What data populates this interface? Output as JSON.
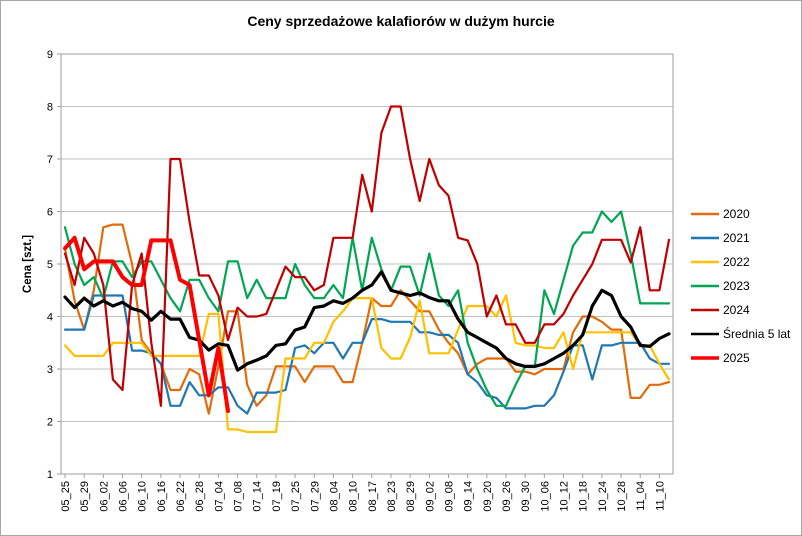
{
  "chart": {
    "title": "Ceny sprzedażowe kalafiorów w dużym hurcie",
    "y_axis_title": "Cena [szt.]",
    "colors": {
      "grid": "#c2c2c2",
      "axis": "#9e9e9e",
      "background": "#ffffff"
    },
    "chart_data": {
      "type": "line",
      "title": "Ceny sprzedażowe kalafiorów w dużym hurcie",
      "xlabel": "",
      "ylabel": "Cena [szt.]",
      "ylim": [
        1,
        9
      ],
      "y_ticks": [
        1,
        2,
        3,
        4,
        5,
        6,
        7,
        8,
        9
      ],
      "grid": "horizontal",
      "legend_position": "right",
      "categories": [
        "05_25",
        "05_29",
        "06_02",
        "06_06",
        "06_10",
        "06_16",
        "06_22",
        "06_28",
        "07_04",
        "07_08",
        "07_14",
        "07_19",
        "07_25",
        "07_29",
        "08_04",
        "08_10",
        "08_17",
        "08_23",
        "08_29",
        "09_02",
        "09_08",
        "09_14",
        "09_20",
        "09_26",
        "09_30",
        "10_06",
        "10_12",
        "10_18",
        "10_24",
        "10_28",
        "11_04",
        "11_10"
      ],
      "points_per_category": 2,
      "series": [
        {
          "name": "2020",
          "color": "#e36c0a",
          "width": 2.2,
          "values": [
            5.3,
            4.3,
            3.75,
            4.5,
            5.7,
            5.75,
            5.75,
            5.0,
            3.55,
            3.3,
            3.1,
            2.6,
            2.6,
            3.0,
            2.9,
            2.15,
            3.05,
            4.1,
            4.1,
            2.7,
            2.3,
            2.5,
            3.05,
            3.05,
            3.05,
            2.75,
            3.05,
            3.05,
            3.05,
            2.75,
            2.75,
            3.5,
            4.35,
            4.2,
            4.2,
            4.5,
            4.3,
            4.1,
            4.1,
            3.75,
            3.5,
            3.3,
            2.9,
            3.1,
            3.2,
            3.2,
            3.2,
            2.95,
            2.95,
            2.9,
            3.0,
            3.0,
            3.0,
            3.7,
            4.0,
            4.0,
            3.9,
            3.75,
            3.75,
            2.45,
            2.45,
            2.7,
            2.7,
            2.75
          ]
        },
        {
          "name": "2021",
          "color": "#1f77b4",
          "width": 2.2,
          "values": [
            3.75,
            3.75,
            3.75,
            4.4,
            4.4,
            4.4,
            4.4,
            3.35,
            3.35,
            3.3,
            3.1,
            2.3,
            2.3,
            2.75,
            2.5,
            2.5,
            2.65,
            2.65,
            2.3,
            2.15,
            2.55,
            2.55,
            2.55,
            2.6,
            3.4,
            3.45,
            3.3,
            3.5,
            3.5,
            3.2,
            3.5,
            3.5,
            3.95,
            3.95,
            3.9,
            3.9,
            3.9,
            3.7,
            3.7,
            3.65,
            3.65,
            3.5,
            2.9,
            2.75,
            2.5,
            2.45,
            2.25,
            2.25,
            2.25,
            2.3,
            2.3,
            2.5,
            2.95,
            3.45,
            3.45,
            2.8,
            3.45,
            3.45,
            3.5,
            3.5,
            3.5,
            3.2,
            3.1,
            3.1
          ]
        },
        {
          "name": "2022",
          "color": "#ffc000",
          "width": 2.2,
          "values": [
            3.45,
            3.25,
            3.25,
            3.25,
            3.25,
            3.5,
            3.5,
            3.5,
            3.5,
            3.25,
            3.25,
            3.25,
            3.25,
            3.25,
            3.25,
            4.05,
            4.05,
            1.85,
            1.85,
            1.8,
            1.8,
            1.8,
            1.8,
            3.2,
            3.2,
            3.2,
            3.5,
            3.5,
            3.9,
            4.1,
            4.35,
            4.35,
            4.35,
            3.4,
            3.2,
            3.2,
            3.6,
            4.3,
            3.3,
            3.3,
            3.3,
            3.75,
            4.2,
            4.2,
            4.2,
            4.0,
            4.4,
            3.5,
            3.45,
            3.45,
            3.4,
            3.4,
            3.7,
            3.0,
            3.7,
            3.7,
            3.7,
            3.7,
            3.7,
            3.7,
            3.45,
            3.45,
            3.1,
            2.8
          ]
        },
        {
          "name": "2023",
          "color": "#00a651",
          "width": 2.2,
          "values": [
            5.7,
            5.0,
            4.6,
            4.75,
            4.35,
            5.05,
            5.05,
            4.75,
            5.05,
            5.05,
            4.7,
            4.35,
            4.1,
            4.7,
            4.7,
            4.35,
            4.1,
            5.05,
            5.05,
            4.35,
            4.7,
            4.35,
            4.35,
            4.35,
            5.0,
            4.6,
            4.35,
            4.35,
            4.6,
            4.35,
            5.5,
            4.5,
            5.5,
            4.9,
            4.5,
            4.95,
            4.95,
            4.4,
            5.2,
            4.4,
            4.2,
            4.5,
            3.5,
            3.0,
            2.6,
            2.3,
            2.3,
            2.7,
            3.05,
            3.05,
            4.5,
            4.05,
            4.7,
            5.35,
            5.6,
            5.6,
            6.0,
            5.8,
            6.0,
            5.2,
            4.25,
            4.25,
            4.25,
            4.25
          ]
        },
        {
          "name": "2024",
          "color": "#c00000",
          "width": 2.2,
          "values": [
            5.2,
            4.6,
            5.5,
            5.2,
            4.6,
            2.8,
            2.6,
            4.6,
            5.2,
            3.5,
            2.3,
            7.0,
            7.0,
            5.8,
            4.78,
            4.78,
            4.4,
            3.55,
            4.17,
            4.0,
            4.0,
            4.05,
            4.5,
            4.95,
            4.75,
            4.75,
            4.5,
            4.6,
            5.5,
            5.5,
            5.5,
            6.7,
            6.0,
            7.5,
            8.0,
            8.0,
            7.0,
            6.2,
            7.0,
            6.5,
            6.3,
            5.5,
            5.45,
            5.0,
            4.0,
            4.4,
            3.85,
            3.85,
            3.5,
            3.5,
            3.85,
            3.85,
            4.05,
            4.4,
            4.7,
            5.0,
            5.46,
            5.46,
            5.46,
            5.03,
            5.7,
            4.5,
            4.5,
            5.46
          ]
        },
        {
          "name": "Średnia 5 lat",
          "color": "#000000",
          "width": 3.2,
          "values": [
            4.37,
            4.17,
            4.35,
            4.2,
            4.3,
            4.2,
            4.27,
            4.15,
            4.1,
            3.93,
            4.1,
            3.95,
            3.95,
            3.6,
            3.55,
            3.36,
            3.48,
            3.45,
            2.98,
            3.1,
            3.17,
            3.25,
            3.45,
            3.48,
            3.74,
            3.8,
            4.17,
            4.2,
            4.3,
            4.25,
            4.35,
            4.5,
            4.6,
            4.85,
            4.5,
            4.45,
            4.4,
            4.45,
            4.36,
            4.3,
            4.3,
            3.95,
            3.7,
            3.6,
            3.5,
            3.4,
            3.2,
            3.1,
            3.05,
            3.05,
            3.1,
            3.2,
            3.3,
            3.45,
            3.65,
            4.2,
            4.5,
            4.4,
            4.0,
            3.8,
            3.45,
            3.43,
            3.58,
            3.67
          ]
        },
        {
          "name": "2025",
          "color": "#ff0000",
          "width": 4,
          "values": [
            5.3,
            5.5,
            4.9,
            5.05,
            5.05,
            5.05,
            4.75,
            4.6,
            4.6,
            5.45,
            5.45,
            5.45,
            4.7,
            4.6,
            3.55,
            2.5,
            3.4,
            2.2,
            null,
            null,
            null,
            null,
            null,
            null,
            null,
            null,
            null,
            null,
            null,
            null,
            null,
            null,
            null,
            null,
            null,
            null,
            null,
            null,
            null,
            null,
            null,
            null,
            null,
            null,
            null,
            null,
            null,
            null,
            null,
            null,
            null,
            null,
            null,
            null,
            null,
            null,
            null,
            null,
            null,
            null,
            null,
            null,
            null,
            null
          ]
        }
      ]
    }
  }
}
